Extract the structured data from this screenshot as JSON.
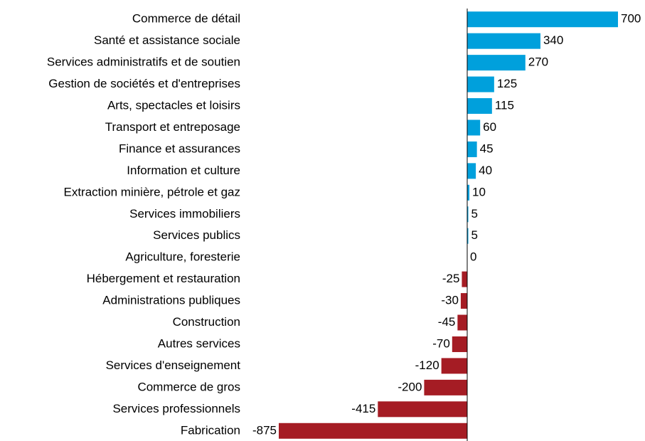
{
  "chart_data": {
    "type": "barh",
    "categories": [
      "Commerce de détail",
      "Santé et assistance sociale",
      "Services administratifs et de soutien",
      "Gestion de sociétés et d'entreprises",
      "Arts, spectacles et loisirs",
      "Transport et entreposage",
      "Finance et assurances",
      "Information et culture",
      "Extraction minière, pétrole et gaz",
      "Services immobiliers",
      "Services publics",
      "Agriculture, foresterie",
      "Hébergement et restauration",
      "Administrations publiques",
      "Construction",
      "Autres services",
      "Services d'enseignement",
      "Commerce de gros",
      "Services professionnels",
      "Fabrication"
    ],
    "values": [
      700,
      340,
      270,
      125,
      115,
      60,
      45,
      40,
      10,
      5,
      5,
      0,
      -25,
      -30,
      -45,
      -70,
      -120,
      -200,
      -415,
      -875
    ],
    "positive_color": "#00a0dc",
    "negative_color": "#a51c24",
    "grid": false
  }
}
